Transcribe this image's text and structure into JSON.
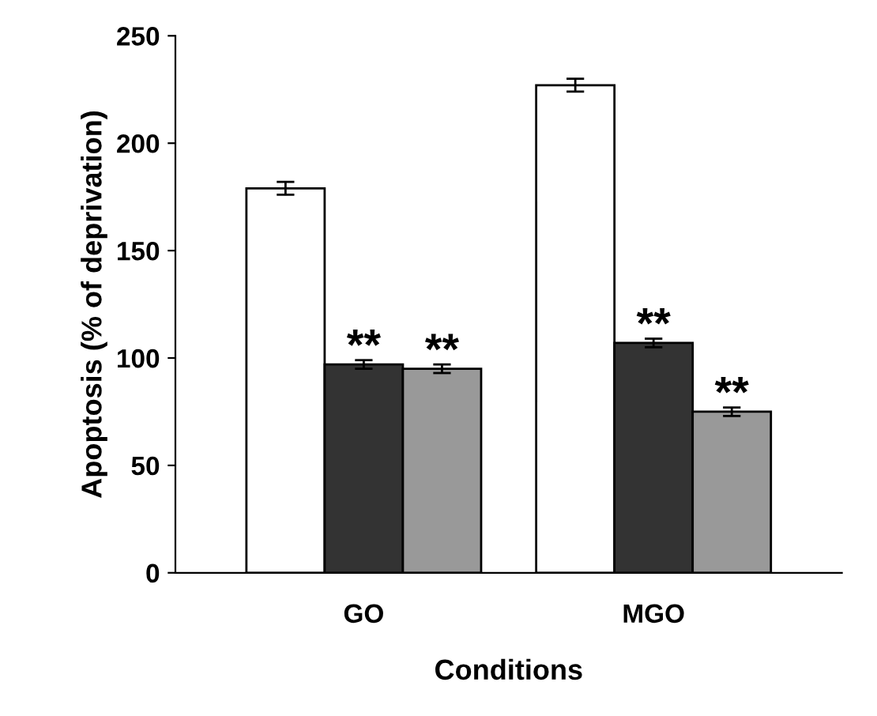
{
  "chart_data": {
    "type": "bar",
    "xlabel": "Conditions",
    "ylabel": "Apoptosis (% of deprivation)",
    "categories": [
      "GO",
      "MGO"
    ],
    "series": [
      {
        "color": "#ffffff",
        "values": [
          179,
          227
        ],
        "errors": [
          3,
          3
        ]
      },
      {
        "color": "#333333",
        "values": [
          97,
          107
        ],
        "errors": [
          2,
          2
        ]
      },
      {
        "color": "#999999",
        "values": [
          95,
          75
        ],
        "errors": [
          2,
          2
        ]
      }
    ],
    "ylim": [
      0,
      250
    ],
    "yticks": [
      0,
      50,
      100,
      150,
      200,
      250
    ],
    "grid": false,
    "legend": false,
    "annotations": [
      "**",
      "**",
      "**",
      "**"
    ]
  }
}
